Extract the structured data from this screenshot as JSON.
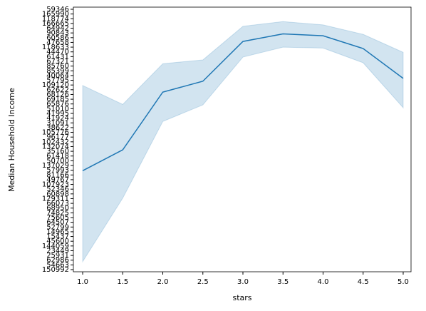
{
  "chart_data": {
    "type": "line",
    "xlabel": "stars",
    "ylabel": "Median Household Income",
    "x": [
      1.0,
      1.5,
      2.0,
      2.5,
      3.0,
      3.5,
      4.0,
      4.5,
      5.0
    ],
    "series": [
      {
        "color": "#1f77b4",
        "values": [
          20.9,
          25.3,
          37.5,
          39.8,
          48.2,
          49.8,
          49.4,
          46.7,
          40.4
        ],
        "upper": [
          38.9,
          34.9,
          43.5,
          44.3,
          51.4,
          52.4,
          51.7,
          49.7,
          45.9
        ],
        "lower": [
          1.7,
          15.1,
          31.3,
          34.8,
          44.9,
          47.0,
          46.8,
          43.7,
          34.2
        ]
      }
    ],
    "xlim": [
      0.884,
      5.098
    ],
    "xticks": [
      {
        "value": 1.0,
        "label": "1.0"
      },
      {
        "value": 1.5,
        "label": "1.5"
      },
      {
        "value": 2.0,
        "label": "2.0"
      },
      {
        "value": 2.5,
        "label": "2.5"
      },
      {
        "value": 3.0,
        "label": "3.0"
      },
      {
        "value": 3.5,
        "label": "3.5"
      },
      {
        "value": 4.0,
        "label": "4.0"
      },
      {
        "value": 4.5,
        "label": "4.5"
      },
      {
        "value": 5.0,
        "label": "5.0"
      }
    ],
    "ylim": [
      -0.45,
      55.45
    ],
    "yticks": [
      {
        "value": 0,
        "label": "150992"
      },
      {
        "value": 1,
        "label": "54663"
      },
      {
        "value": 2,
        "label": "62986"
      },
      {
        "value": 3,
        "label": "25931"
      },
      {
        "value": 4,
        "label": "23449"
      },
      {
        "value": 5,
        "label": "144059"
      },
      {
        "value": 6,
        "label": "45600"
      },
      {
        "value": 7,
        "label": "15437"
      },
      {
        "value": 8,
        "label": "14965"
      },
      {
        "value": 9,
        "label": "52799"
      },
      {
        "value": 10,
        "label": "64507"
      },
      {
        "value": 11,
        "label": "75605"
      },
      {
        "value": 12,
        "label": "74825"
      },
      {
        "value": 13,
        "label": "68950"
      },
      {
        "value": 14,
        "label": "66073"
      },
      {
        "value": 15,
        "label": "129311"
      },
      {
        "value": 16,
        "label": "60898"
      },
      {
        "value": 17,
        "label": "52346"
      },
      {
        "value": 18,
        "label": "107923"
      },
      {
        "value": 19,
        "label": "49767"
      },
      {
        "value": 20,
        "label": "81166"
      },
      {
        "value": 21,
        "label": "57993"
      },
      {
        "value": 22,
        "label": "137029"
      },
      {
        "value": 23,
        "label": "50700"
      },
      {
        "value": 24,
        "label": "61418"
      },
      {
        "value": 25,
        "label": "35160"
      },
      {
        "value": 26,
        "label": "132074"
      },
      {
        "value": 27,
        "label": "102432"
      },
      {
        "value": 28,
        "label": "96177"
      },
      {
        "value": 29,
        "label": "105776"
      },
      {
        "value": 30,
        "label": "38622"
      },
      {
        "value": 31,
        "label": "31091"
      },
      {
        "value": 32,
        "label": "41924"
      },
      {
        "value": 33,
        "label": "41995"
      },
      {
        "value": 34,
        "label": "51010"
      },
      {
        "value": 35,
        "label": "65876"
      },
      {
        "value": 36,
        "label": "69185"
      },
      {
        "value": 37,
        "label": "68126"
      },
      {
        "value": 38,
        "label": "62622"
      },
      {
        "value": 39,
        "label": "109120"
      },
      {
        "value": 40,
        "label": "57795"
      },
      {
        "value": 41,
        "label": "40064"
      },
      {
        "value": 42,
        "label": "85399"
      },
      {
        "value": 43,
        "label": "85760"
      },
      {
        "value": 44,
        "label": "67321"
      },
      {
        "value": 45,
        "label": "61431"
      },
      {
        "value": 46,
        "label": "44470"
      },
      {
        "value": 47,
        "label": "118633"
      },
      {
        "value": 48,
        "label": "47658"
      },
      {
        "value": 49,
        "label": "60586"
      },
      {
        "value": 50,
        "label": "90843"
      },
      {
        "value": 51,
        "label": "64942"
      },
      {
        "value": 52,
        "label": "166665"
      },
      {
        "value": 53,
        "label": "118774"
      },
      {
        "value": 54,
        "label": "165990"
      },
      {
        "value": 55,
        "label": "59346"
      }
    ]
  }
}
